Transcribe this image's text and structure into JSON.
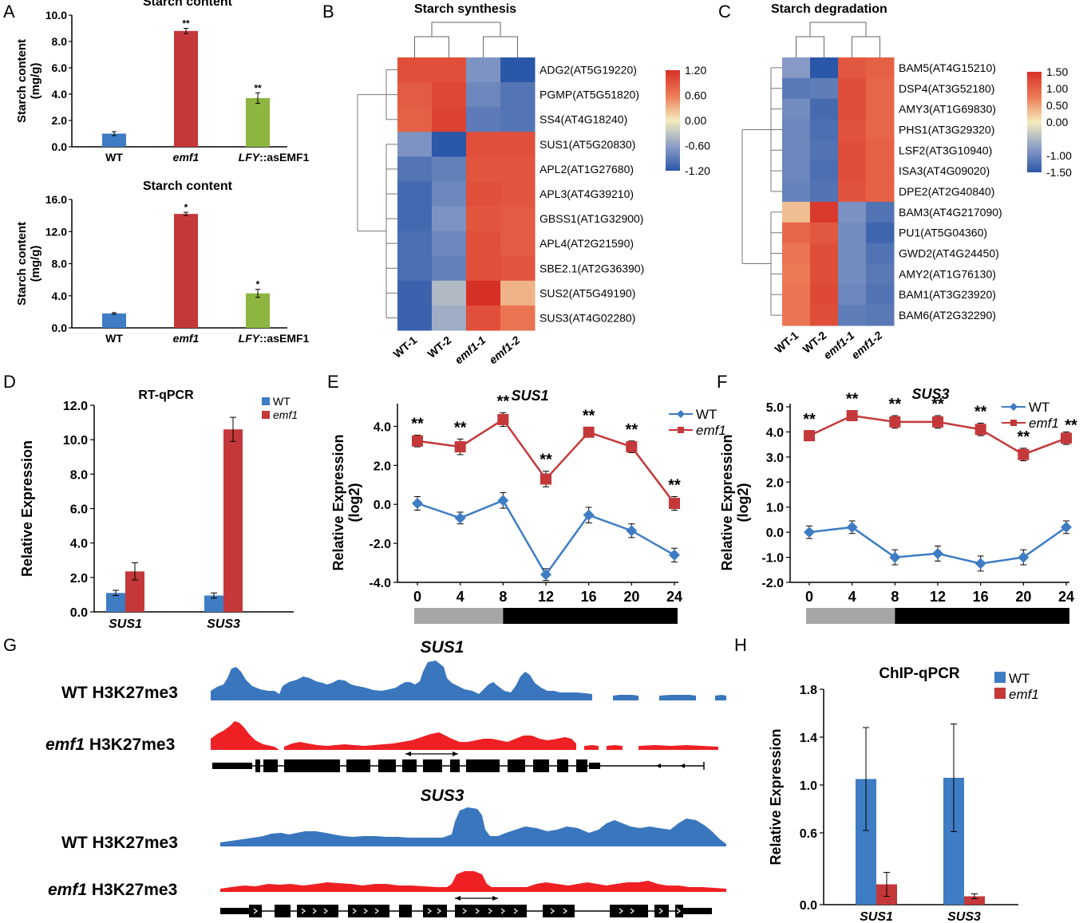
{
  "colors": {
    "wt": "#3e7cc3",
    "emf1": "#c4383a",
    "lfy": "#8db540",
    "track_wt": "#3a76bd",
    "track_emf1": "#ee2024",
    "bar_light": "#a6a6a6",
    "bar_dark": "#000000"
  },
  "panels": {
    "A": "A",
    "B": "B",
    "C": "C",
    "D": "D",
    "E": "E",
    "F": "F",
    "G": "G",
    "H": "H"
  },
  "chart_data": [
    {
      "id": "A1",
      "type": "bar",
      "title": "Starch content",
      "ylabel": "Starch content (mg/g)",
      "ylabel_lines": [
        "Starch content",
        "(mg/g)"
      ],
      "ylim": [
        0,
        10
      ],
      "yticks": [
        0,
        2,
        4,
        6,
        8,
        10
      ],
      "yticklabels": [
        "0.0",
        "2.0",
        "4.0",
        "6.0",
        "8.0",
        "10.0"
      ],
      "categories": [
        "WT",
        "emf1",
        "LFY::asEMF1"
      ],
      "values": [
        1.0,
        8.8,
        3.7
      ],
      "errors": [
        0.15,
        0.2,
        0.4
      ],
      "significance": [
        "",
        "**",
        "**"
      ]
    },
    {
      "id": "A2",
      "type": "bar",
      "title": "Starch content",
      "ylabel": "Starch content (mg/g)",
      "ylabel_lines": [
        "Starch content",
        "(mg/g)"
      ],
      "ylim": [
        0,
        16
      ],
      "yticks": [
        0,
        4,
        8,
        12,
        16
      ],
      "yticklabels": [
        "0.0",
        "4.0",
        "8.0",
        "12.0",
        "16.0"
      ],
      "categories": [
        "WT",
        "emf1",
        "LFY::asEMF1"
      ],
      "values": [
        1.8,
        14.2,
        4.3
      ],
      "errors": [
        0.1,
        0.2,
        0.5
      ],
      "significance": [
        "",
        "*",
        "*"
      ]
    },
    {
      "id": "B",
      "type": "heatmap",
      "title": "Starch synthesis",
      "columns": [
        "WT-1",
        "WT-2",
        "emf1-1",
        "emf1-2"
      ],
      "rows": [
        "ADG2(AT5G19220)",
        "PGMP(AT5G51820)",
        "SS4(AT4G18240)",
        "SUS1(AT5G20830)",
        "APL2(AT1G27680)",
        "APL3(AT4G39210)",
        "GBSS1(AT1G32900)",
        "APL4(AT2G21590)",
        "SBE2.1(AT2G36390)",
        "SUS2(AT5G49190)",
        "SUS3(AT4G02280)"
      ],
      "values": [
        [
          0.95,
          0.95,
          -0.7,
          -1.2
        ],
        [
          0.85,
          1.0,
          -0.8,
          -0.95
        ],
        [
          0.8,
          1.05,
          -0.9,
          -0.95
        ],
        [
          -0.7,
          -1.2,
          0.95,
          0.95
        ],
        [
          -0.95,
          -0.85,
          0.9,
          0.9
        ],
        [
          -1.05,
          -0.8,
          0.95,
          0.9
        ],
        [
          -1.05,
          -0.7,
          0.9,
          0.85
        ],
        [
          -1.0,
          -0.8,
          0.95,
          0.85
        ],
        [
          -1.0,
          -0.85,
          0.95,
          0.9
        ],
        [
          -1.1,
          -0.4,
          1.2,
          0.3
        ],
        [
          -1.1,
          -0.5,
          0.95,
          0.65
        ]
      ],
      "scale": {
        "min": -1.2,
        "max": 1.2,
        "ticks": [
          1.2,
          0.6,
          0,
          -0.6,
          -1.2
        ],
        "labels": [
          "1.20",
          "0.60",
          "0.00",
          "-0.60",
          "-1.20"
        ]
      }
    },
    {
      "id": "C",
      "type": "heatmap",
      "title": "Starch degradation",
      "columns": [
        "WT-1",
        "WT-2",
        "emf1-1",
        "emf1-2"
      ],
      "rows": [
        "BAM5(AT4G15210)",
        "DSP4(AT3G52180)",
        "AMY3(AT1G69830)",
        "PHS1(AT3G29320)",
        "LSF2(AT3G10940)",
        "ISA3(AT4G09020)",
        "DPE2(AT2G40840)",
        "BAM3(AT4G217090)",
        "PU1(AT5G04360)",
        "GWD2(AT4G24450)",
        "AMY2(AT1G76130)",
        "BAM1(AT3G23920)",
        "BAM6(AT2G32290)"
      ],
      "values": [
        [
          -0.8,
          -1.5,
          1.1,
          1.0
        ],
        [
          -1.15,
          -1.1,
          1.2,
          0.95
        ],
        [
          -0.95,
          -1.3,
          1.2,
          0.95
        ],
        [
          -1.0,
          -1.25,
          1.15,
          0.95
        ],
        [
          -1.0,
          -1.2,
          1.2,
          1.0
        ],
        [
          -1.0,
          -1.25,
          1.2,
          1.0
        ],
        [
          -1.05,
          -1.2,
          1.15,
          1.0
        ],
        [
          0.3,
          1.4,
          -0.9,
          -1.2
        ],
        [
          0.95,
          1.1,
          -0.95,
          -1.35
        ],
        [
          0.8,
          1.2,
          -0.95,
          -1.2
        ],
        [
          0.75,
          1.2,
          -0.95,
          -1.15
        ],
        [
          0.8,
          1.25,
          -1.0,
          -1.2
        ],
        [
          0.8,
          1.2,
          -1.1,
          -1.15
        ]
      ],
      "scale": {
        "min": -1.5,
        "max": 1.5,
        "ticks": [
          1.5,
          1.0,
          0.5,
          0,
          -1.0,
          -1.5
        ],
        "labels": [
          "1.50",
          "1.00",
          "0.50",
          "0.00",
          "-1.00",
          "-1.50"
        ]
      }
    },
    {
      "id": "D",
      "type": "bar",
      "title": "RT-qPCR",
      "ylabel": "Relative Expression",
      "ylim": [
        0,
        12
      ],
      "yticks": [
        0,
        2,
        4,
        6,
        8,
        10,
        12
      ],
      "yticklabels": [
        "0.0",
        "2.0",
        "4.0",
        "6.0",
        "8.0",
        "10.0",
        "12.0"
      ],
      "categories": [
        "SUS1",
        "SUS3"
      ],
      "series": [
        {
          "name": "WT",
          "values": [
            1.1,
            0.95
          ],
          "errors": [
            0.15,
            0.15
          ]
        },
        {
          "name": "emf1",
          "values": [
            2.35,
            10.6
          ],
          "errors": [
            0.5,
            0.7
          ]
        }
      ]
    },
    {
      "id": "E",
      "type": "line",
      "title": "SUS1",
      "ylabel": "Relative Expression (log2)",
      "ylabel_lines": [
        "Relative Expression",
        "(log2)"
      ],
      "x": [
        0,
        4,
        8,
        12,
        16,
        20,
        24
      ],
      "xticklabels": [
        "0",
        "4",
        "8",
        "12",
        "16",
        "20",
        "24"
      ],
      "ylim": [
        -4,
        5
      ],
      "yticks": [
        -4,
        -2,
        0,
        2,
        4
      ],
      "yticklabels": [
        "-4.0",
        "-2.0",
        "0.0",
        "2.0",
        "4.0"
      ],
      "series": [
        {
          "name": "WT",
          "values": [
            0.05,
            -0.7,
            0.2,
            -3.6,
            -0.55,
            -1.35,
            -2.6
          ],
          "errors": [
            0.35,
            0.3,
            0.4,
            0.3,
            0.4,
            0.35,
            0.35
          ]
        },
        {
          "name": "emf1",
          "values": [
            3.25,
            2.95,
            4.35,
            1.3,
            3.7,
            2.95,
            0.05
          ],
          "errors": [
            0.3,
            0.4,
            0.35,
            0.4,
            0.25,
            0.3,
            0.35
          ]
        }
      ],
      "significance": [
        "**",
        "**",
        "**",
        "**",
        "**",
        "**",
        "**"
      ],
      "light_dark": {
        "light": [
          0,
          8
        ],
        "dark": [
          8,
          24
        ]
      }
    },
    {
      "id": "F",
      "type": "line",
      "title": "SUS3",
      "ylabel": "Relative Expression (log2)",
      "ylabel_lines": [
        "Relative Expression",
        "(log2)"
      ],
      "x": [
        0,
        4,
        8,
        12,
        16,
        20,
        24
      ],
      "xticklabels": [
        "0",
        "4",
        "8",
        "12",
        "16",
        "20",
        "24"
      ],
      "ylim": [
        -2,
        5
      ],
      "yticks": [
        -2,
        -1,
        0,
        1,
        2,
        3,
        4,
        5
      ],
      "yticklabels": [
        "-2.0",
        "-1.0",
        "0.0",
        "1.0",
        "2.0",
        "3.0",
        "4.0",
        "5.0"
      ],
      "series": [
        {
          "name": "WT",
          "values": [
            0.0,
            0.2,
            -1.0,
            -0.85,
            -1.25,
            -1.0,
            0.2
          ],
          "errors": [
            0.25,
            0.25,
            0.3,
            0.3,
            0.3,
            0.3,
            0.25
          ]
        },
        {
          "name": "emf1",
          "values": [
            3.85,
            4.65,
            4.4,
            4.4,
            4.1,
            3.1,
            3.75
          ],
          "errors": [
            0.2,
            0.2,
            0.25,
            0.25,
            0.25,
            0.25,
            0.25
          ]
        }
      ],
      "significance": [
        "**",
        "**",
        "**",
        "**",
        "**",
        "**",
        "**"
      ],
      "light_dark": {
        "light": [
          0,
          8
        ],
        "dark": [
          8,
          24
        ]
      }
    },
    {
      "id": "H",
      "type": "bar",
      "title": "ChIP-qPCR",
      "ylabel": "Relative Expression",
      "ylim": [
        0,
        1.8
      ],
      "yticks": [
        0,
        0.6,
        1.0,
        1.4,
        1.8
      ],
      "yticklabels": [
        "0.0",
        "0.6",
        "1.0",
        "1.4",
        "1.8"
      ],
      "categories": [
        "SUS1",
        "SUS3"
      ],
      "series": [
        {
          "name": "WT",
          "values": [
            1.05,
            1.06
          ],
          "errors": [
            0.43,
            0.45
          ]
        },
        {
          "name": "emf1",
          "values": [
            0.17,
            0.07
          ],
          "errors": [
            0.1,
            0.02
          ]
        }
      ]
    }
  ],
  "tracks": {
    "sus1_title": "SUS1",
    "sus3_title": "SUS3",
    "wt_label": "WT H3K27me3",
    "emf1_label_it": "emf1",
    "emf1_label_rest": " H3K27me3"
  }
}
